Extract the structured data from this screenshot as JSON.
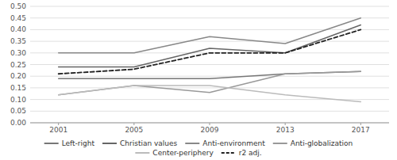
{
  "chart_data": {
    "type": "line",
    "x": [
      2001,
      2005,
      2009,
      2013,
      2017
    ],
    "series": [
      {
        "name": "Left-right",
        "color": "#777777",
        "line_style": "solid",
        "values": [
          0.19,
          0.19,
          0.19,
          0.21,
          0.22
        ]
      },
      {
        "name": "Christian values",
        "color": "#666666",
        "line_style": "solid",
        "values": [
          0.24,
          0.24,
          0.32,
          0.3,
          0.42
        ]
      },
      {
        "name": "Anti-environment",
        "color": "#888888",
        "line_style": "solid",
        "values": [
          0.3,
          0.3,
          0.37,
          0.34,
          0.45
        ]
      },
      {
        "name": "Anti-globalization",
        "color": "#999999",
        "line_style": "solid",
        "values": [
          0.12,
          0.16,
          0.13,
          0.21,
          0.22
        ]
      },
      {
        "name": "Center-periphery",
        "color": "#bbbbbb",
        "line_style": "solid",
        "values": [
          0.12,
          0.16,
          0.16,
          0.12,
          0.09
        ]
      },
      {
        "name": "r2 adj.",
        "color": "#222222",
        "line_style": "dashed",
        "values": [
          0.21,
          0.23,
          0.3,
          0.3,
          0.4
        ]
      }
    ],
    "xlim": [
      1999.5,
      2018.5
    ],
    "xticks": [
      2001,
      2005,
      2009,
      2013,
      2017
    ],
    "ylim": [
      0.0,
      0.5
    ],
    "yticks": [
      {
        "value": 0.0,
        "label": "0.00"
      },
      {
        "value": 0.05,
        "label": "0.05"
      },
      {
        "value": 0.1,
        "label": "0.10"
      },
      {
        "value": 0.15,
        "label": "0.15"
      },
      {
        "value": 0.2,
        "label": "0.20"
      },
      {
        "value": 0.25,
        "label": "0.25"
      },
      {
        "value": 0.3,
        "label": "0.30"
      },
      {
        "value": 0.35,
        "label": "0.35"
      },
      {
        "value": 0.4,
        "label": "0.40"
      },
      {
        "value": 0.45,
        "label": "0.45"
      },
      {
        "value": 0.5,
        "label": "0.50"
      }
    ],
    "grid": true,
    "legend": "bottom"
  }
}
